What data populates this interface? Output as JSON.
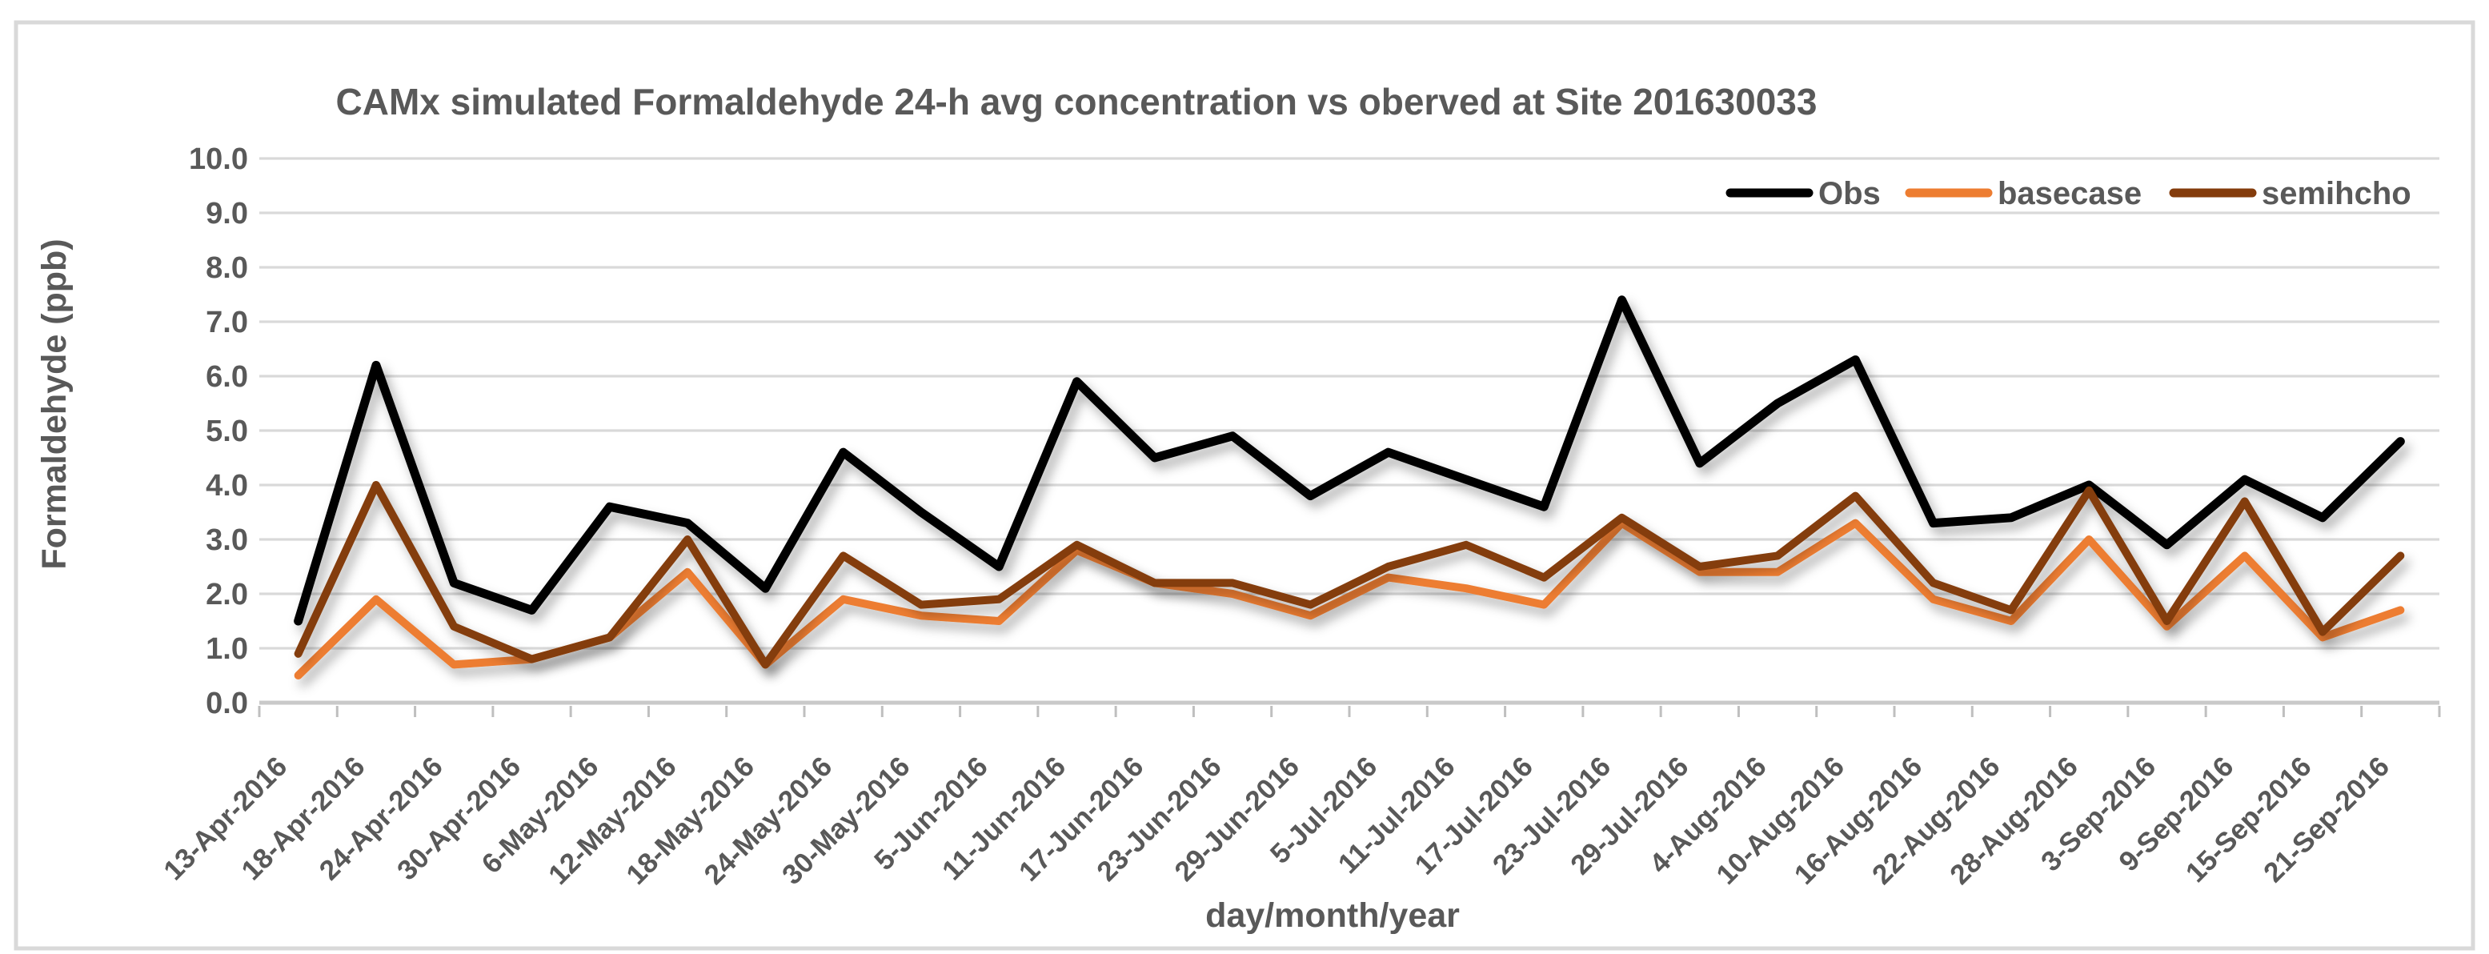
{
  "window": {
    "background": "#FFFFFF",
    "border_color": "#D9D9D9"
  },
  "chart_data": {
    "type": "line",
    "title": "CAMx simulated Formaldehyde 24-h avg concentration vs oberved at Site 201630033",
    "xlabel": "day/month/year",
    "ylabel": "Formaldehyde (ppb)",
    "ylim": [
      0,
      10
    ],
    "ytick_step": 1.0,
    "ytick_decimals": 1,
    "grid": "horizontal",
    "legend_position": "top-right-inside",
    "categories": [
      "13-Apr-2016",
      "18-Apr-2016",
      "24-Apr-2016",
      "30-Apr-2016",
      "6-May-2016",
      "12-May-2016",
      "18-May-2016",
      "24-May-2016",
      "30-May-2016",
      "5-Jun-2016",
      "11-Jun-2016",
      "17-Jun-2016",
      "23-Jun-2016",
      "29-Jun-2016",
      "5-Jul-2016",
      "11-Jul-2016",
      "17-Jul-2016",
      "23-Jul-2016",
      "29-Jul-2016",
      "4-Aug-2016",
      "10-Aug-2016",
      "16-Aug-2016",
      "22-Aug-2016",
      "28-Aug-2016",
      "3-Sep-2016",
      "9-Sep-2016",
      "15-Sep-2016",
      "21-Sep-2016"
    ],
    "series": [
      {
        "name": "Obs",
        "color": "#000000",
        "values": [
          1.5,
          6.2,
          2.2,
          1.7,
          3.6,
          3.3,
          2.1,
          4.6,
          3.5,
          2.5,
          5.9,
          4.5,
          4.9,
          3.8,
          4.6,
          4.1,
          3.6,
          7.4,
          4.4,
          5.5,
          6.3,
          3.3,
          3.4,
          4.0,
          2.9,
          4.1,
          3.4,
          4.8
        ]
      },
      {
        "name": "basecase",
        "color": "#ED7D31",
        "values": [
          0.5,
          1.9,
          0.7,
          0.8,
          1.2,
          2.4,
          0.7,
          1.9,
          1.6,
          1.5,
          2.8,
          2.2,
          2.0,
          1.6,
          2.3,
          2.1,
          1.8,
          3.3,
          2.4,
          2.4,
          3.3,
          1.9,
          1.5,
          3.0,
          1.4,
          2.7,
          1.2,
          1.7
        ]
      },
      {
        "name": "semihcho",
        "color": "#843C0C",
        "values": [
          0.9,
          4.0,
          1.4,
          0.8,
          1.2,
          3.0,
          0.7,
          2.7,
          1.8,
          1.9,
          2.9,
          2.2,
          2.2,
          1.8,
          2.5,
          2.9,
          2.3,
          3.4,
          2.5,
          2.7,
          3.8,
          2.2,
          1.7,
          3.9,
          1.5,
          3.7,
          1.3,
          2.7
        ]
      }
    ],
    "colors": {
      "gridline": "#D9D9D9",
      "axis_line": "#C9C9C9",
      "tick_mark": "#BFBFBF",
      "text": "#595959"
    }
  }
}
